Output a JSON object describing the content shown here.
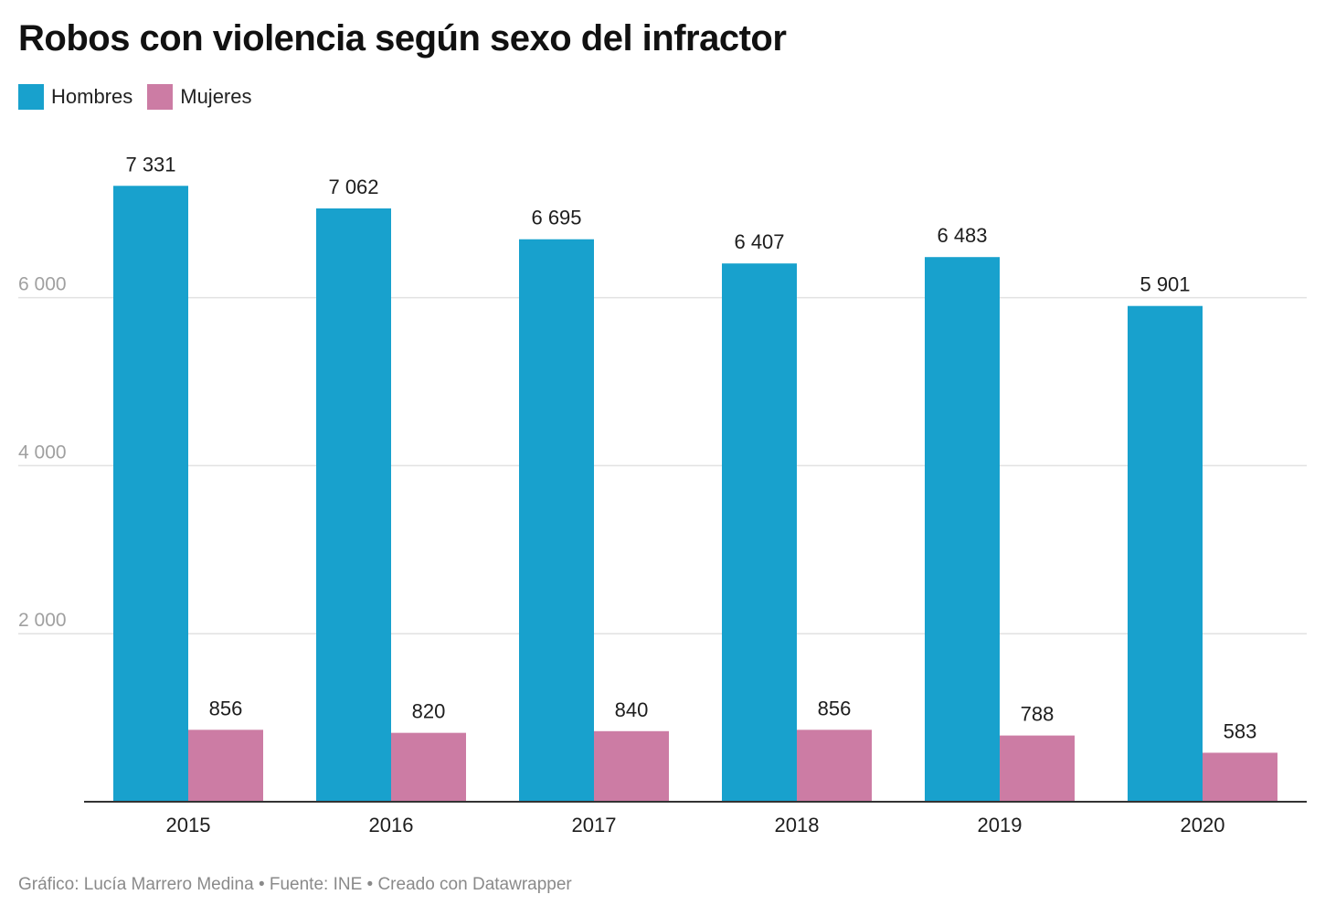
{
  "chart_data": {
    "type": "bar",
    "title": "Robos con violencia según sexo del infractor",
    "categories": [
      "2015",
      "2016",
      "2017",
      "2018",
      "2019",
      "2020"
    ],
    "series": [
      {
        "name": "Hombres",
        "color": "#18a1cd",
        "values": [
          7331,
          7062,
          6695,
          6407,
          6483,
          5901
        ],
        "labels": [
          "7 331",
          "7 062",
          "6 695",
          "6 407",
          "6 483",
          "5 901"
        ]
      },
      {
        "name": "Mujeres",
        "color": "#cc7ca4",
        "values": [
          856,
          820,
          840,
          856,
          788,
          583
        ],
        "labels": [
          "856",
          "820",
          "840",
          "856",
          "788",
          "583"
        ]
      }
    ],
    "yticks": [
      {
        "value": 2000,
        "label": "2 000"
      },
      {
        "value": 4000,
        "label": "4 000"
      },
      {
        "value": 6000,
        "label": "6 000"
      }
    ],
    "ylim": [
      0,
      8000
    ],
    "grid": true,
    "legend_position": "top-left"
  },
  "footer": {
    "text": "Gráfico: Lucía Marrero Medina • Fuente: INE • Creado con Datawrapper"
  }
}
